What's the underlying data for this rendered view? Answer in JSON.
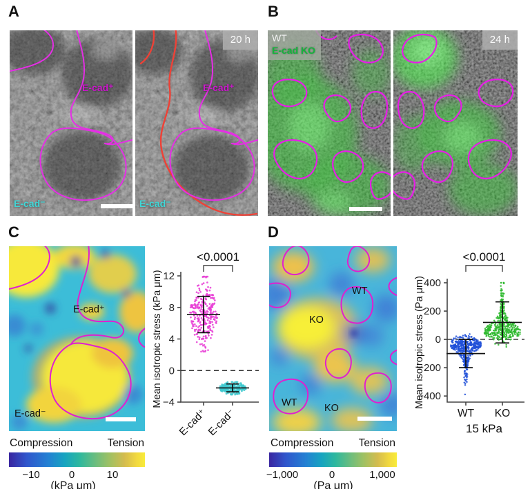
{
  "panel_a": {
    "letter": "A",
    "timestamp": "20 h",
    "pos_label": "E-cad⁺",
    "neg_label": "E-cad⁻"
  },
  "panel_b": {
    "letter": "B",
    "timestamp": "24 h",
    "legend_wt": "WT",
    "legend_ko": "E-cad KO"
  },
  "panel_c": {
    "letter": "C",
    "map_pos_label": "E-cad⁺",
    "map_neg_label": "E-cad⁻",
    "colorbar": {
      "left_label": "Compression",
      "right_label": "Tension",
      "ticks": [
        "−10",
        "0",
        "10"
      ],
      "unit": "(kPa μm)"
    }
  },
  "panel_d": {
    "letter": "D",
    "map_labels": {
      "wt_top": "WT",
      "ko_mid": "KO",
      "wt_bottom": "WT",
      "ko_bottom": "KO"
    },
    "colorbar": {
      "left_label": "Compression",
      "right_label": "Tension",
      "ticks": [
        "−1,000",
        "0",
        "1,000"
      ],
      "unit": "(Pa μm)"
    }
  },
  "colors": {
    "outline_magenta": "#e52ee5",
    "outline_red": "#ef4136",
    "label_cyan": "#41d6d6",
    "label_magenta": "#cc18cc"
  },
  "chart_data": [
    {
      "id": "panel-c-scatter",
      "type": "scatter",
      "ylabel": "Mean isotropic stress (kPa μm)",
      "ylim": [
        -4,
        12
      ],
      "yticks": [
        {
          "v": 12,
          "label": "12"
        },
        {
          "v": 8,
          "label": "8"
        },
        {
          "v": 4,
          "label": "4"
        },
        {
          "v": 0,
          "label": "0"
        },
        {
          "v": -4,
          "label": "−4"
        }
      ],
      "zero_line": true,
      "significance": "<0.0001",
      "categories": [
        "E-cad⁺",
        "E-cad⁻"
      ],
      "rotate_x_labels": true,
      "series": [
        {
          "name": "E-cad⁺",
          "color": "#e83cd5",
          "style": "swarm",
          "mean": 7.1,
          "sd": 2.3,
          "mode": 7.1,
          "spread": 2.0,
          "min": 2.4,
          "max": 11.9,
          "n": 290
        },
        {
          "name": "E-cad⁻",
          "color": "#3fc9cf",
          "style": "swarm",
          "mean": -2.2,
          "sd": 0.5,
          "mode": -2.2,
          "spread": 0.38,
          "min": -3.05,
          "max": -1.45,
          "n": 260
        }
      ]
    },
    {
      "id": "panel-d-scatter",
      "type": "scatter",
      "ylabel": "Mean isotropic stress (Pa μm)",
      "xlabel": "15 kPa",
      "ylim": [
        -443,
        400
      ],
      "yticks": [
        {
          "v": 400,
          "label": "400"
        },
        {
          "v": 200,
          "label": "200"
        },
        {
          "v": 0,
          "label": "0"
        },
        {
          "v": -200,
          "label": "−200"
        },
        {
          "v": -400,
          "label": "−400"
        }
      ],
      "zero_line": true,
      "significance": "<0.0001",
      "categories": [
        "WT",
        "KO"
      ],
      "rotate_x_labels": false,
      "series": [
        {
          "name": "WT",
          "color": "#1f4fd8",
          "style": "violin",
          "tail": "down",
          "mean": -100,
          "sd": 100,
          "mode": -35,
          "spread": 90,
          "min": -420,
          "max": 90,
          "n": 460
        },
        {
          "name": "KO",
          "color": "#2db92d",
          "style": "violin",
          "tail": "up",
          "mean": 120,
          "sd": 145,
          "mode": 55,
          "spread": 95,
          "min": -100,
          "max": 400,
          "n": 460
        }
      ]
    }
  ]
}
